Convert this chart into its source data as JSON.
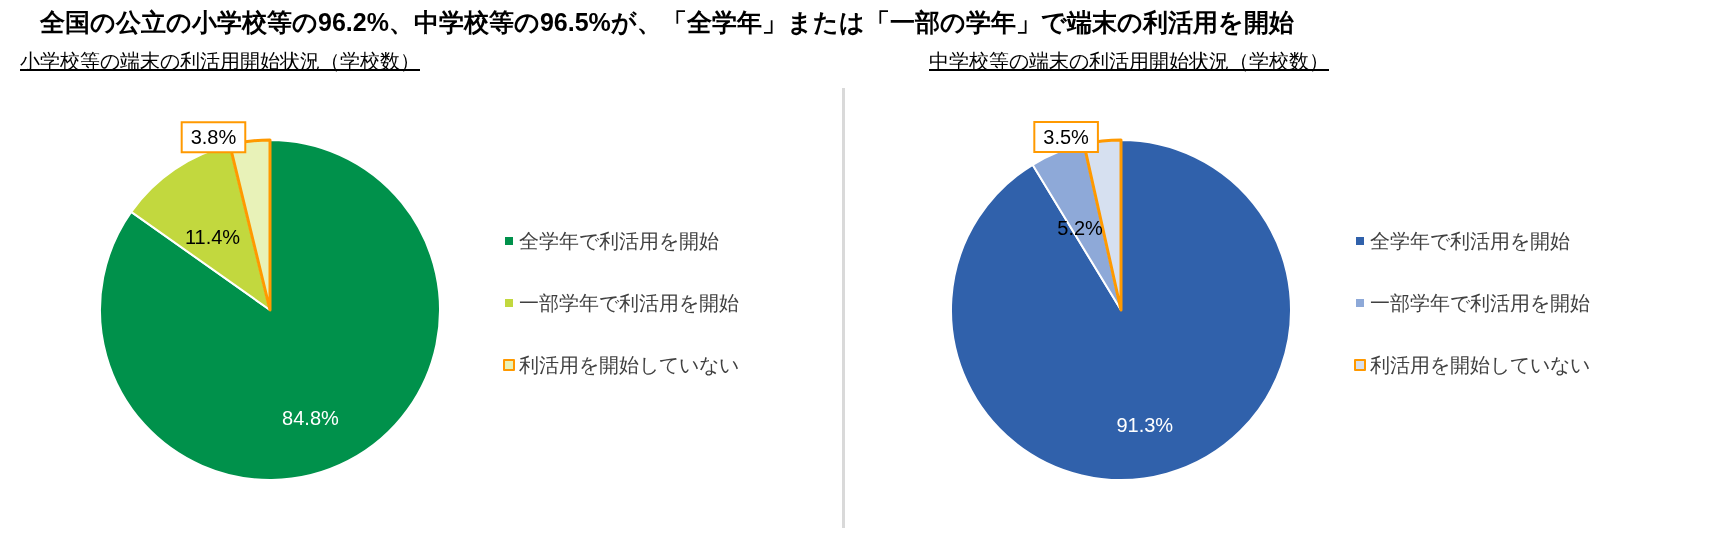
{
  "chart_data": [
    {
      "type": "other",
      "title": "全国の公立の小学校等の96.2%、中学校等の96.5%が、「全学年」または「一部の学年」で端末の利活用を開始"
    },
    {
      "type": "pie",
      "title": "小学校等の端末の利活用開始状況（学校数）",
      "categories": [
        "全学年で利活用を開始",
        "一部学年で利活用を開始",
        "利活用を開始していない"
      ],
      "values": [
        84.8,
        11.4,
        3.8
      ],
      "value_labels": [
        "84.8%",
        "11.4%",
        "3.8%"
      ],
      "colors": [
        "#00914b",
        "#c2d83e",
        "#e8f2b8"
      ],
      "legend": "right"
    },
    {
      "type": "pie",
      "title": "中学校等の端末の利活用開始状況（学校数）",
      "categories": [
        "全学年で利活用を開始",
        "一部学年で利活用を開始",
        "利活用を開始していない"
      ],
      "values": [
        91.3,
        5.2,
        3.5
      ],
      "value_labels": [
        "91.3%",
        "5.2%",
        "3.5%"
      ],
      "colors": [
        "#3061ab",
        "#8ea9d8",
        "#d6e0f0"
      ],
      "legend": "right"
    }
  ]
}
